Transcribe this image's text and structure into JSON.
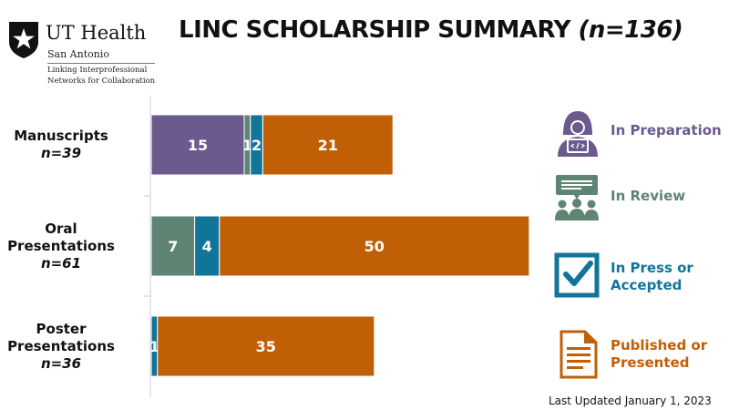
{
  "logo": {
    "name": "UT Health",
    "city": "San Antonio",
    "tagline_line1": "Linking Interprofessional",
    "tagline_line2": "Networks for Collaboration"
  },
  "title": {
    "main": "LINC SCHOLARSHIP SUMMARY",
    "count": "(n=136)"
  },
  "colors": {
    "in_preparation": "#6b5a8e",
    "in_review": "#5e8473",
    "in_press": "#11759a",
    "published": "#c15f07",
    "axis": "#cccccc"
  },
  "chart_data": {
    "type": "bar",
    "orientation": "horizontal",
    "stacked": true,
    "categories": [
      {
        "lines": [
          "Manuscripts"
        ],
        "n": "n=39"
      },
      {
        "lines": [
          "Oral",
          "Presentations"
        ],
        "n": "n=61"
      },
      {
        "lines": [
          "Poster",
          "Presentations"
        ],
        "n": "n=36"
      }
    ],
    "series": [
      {
        "name": "In Preparation",
        "color": "#6b5a8e",
        "values": [
          15,
          0,
          0
        ]
      },
      {
        "name": "In Review",
        "color": "#5e8473",
        "values": [
          1,
          7,
          0
        ]
      },
      {
        "name": "In Press or Accepted",
        "color": "#11759a",
        "values": [
          2,
          4,
          1
        ]
      },
      {
        "name": "Published or Presented",
        "color": "#c15f07",
        "values": [
          21,
          50,
          35
        ]
      }
    ],
    "xlim": [
      0,
      63
    ],
    "grid": false,
    "legend_position": "right"
  },
  "legend": [
    {
      "icon": "person-laptop-icon",
      "lines": [
        "In Preparation"
      ]
    },
    {
      "icon": "review-meeting-icon",
      "lines": [
        "In Review"
      ]
    },
    {
      "icon": "checkbox-icon",
      "lines": [
        "In Press or",
        "Accepted"
      ]
    },
    {
      "icon": "document-icon",
      "lines": [
        "Published or",
        "Presented"
      ]
    }
  ],
  "footer": {
    "updated": "Last Updated January 1, 2023"
  }
}
